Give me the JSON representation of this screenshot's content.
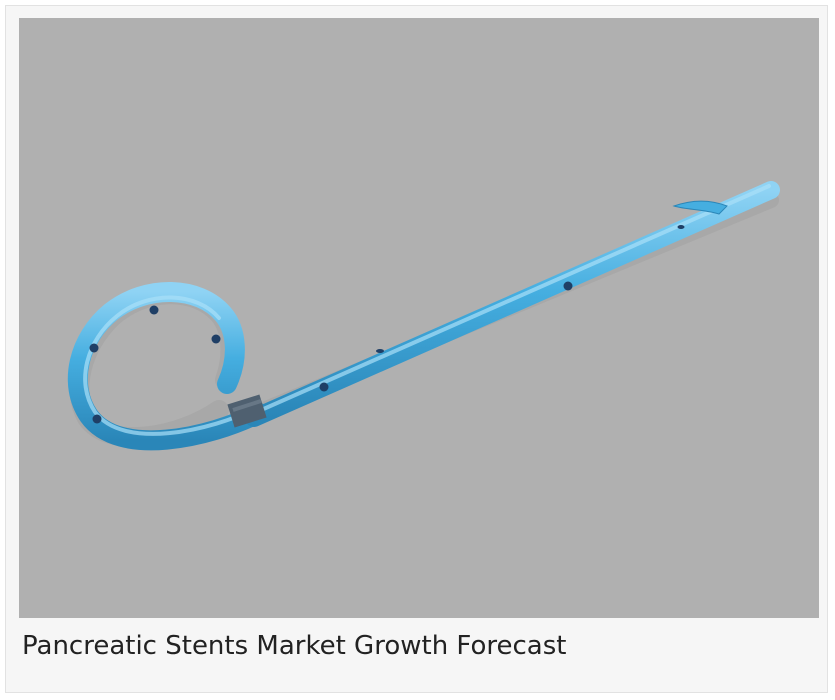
{
  "figure": {
    "caption": "Pancreatic Stents Market Growth Forecast",
    "image_subject": "blue pigtail pancreatic stent on gray background",
    "colors": {
      "background": "#b0b0b0",
      "stent_blue": "#45aee0",
      "stent_highlight": "#8fd3f4",
      "stent_shadow": "#2a86b8",
      "radiopaque_band": "#4f6070"
    }
  }
}
